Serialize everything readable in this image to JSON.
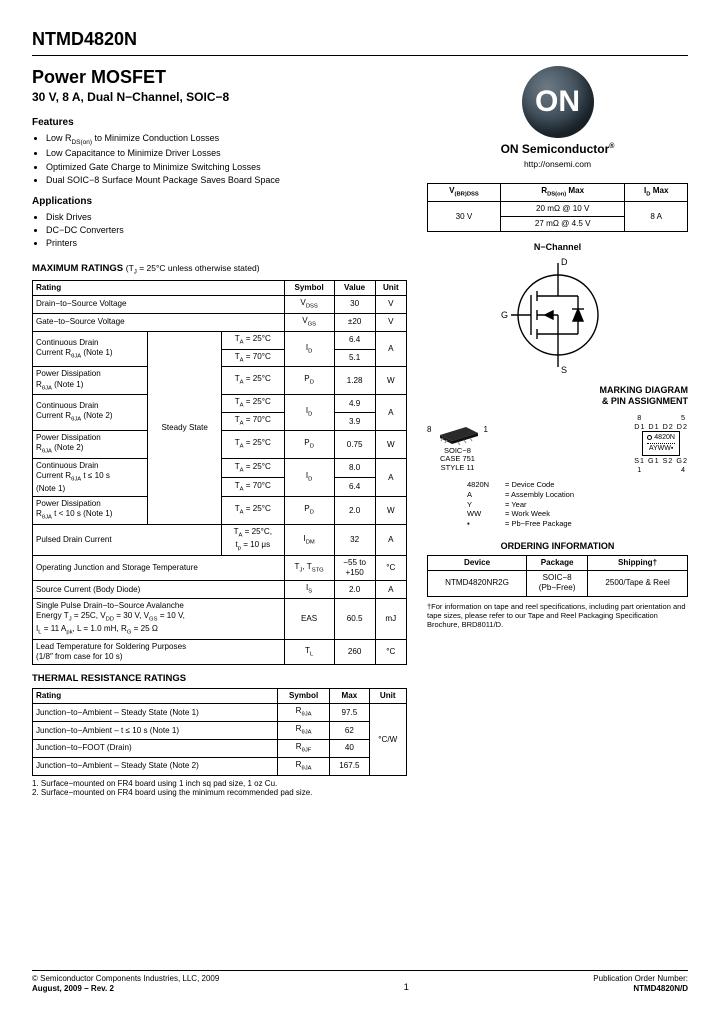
{
  "part_number": "NTMD4820N",
  "title": "Power MOSFET",
  "subtitle": "30 V, 8 A, Dual N−Channel, SOIC−8",
  "features_heading": "Features",
  "features": [
    "Low R<sub>DS(on)</sub> to Minimize Conduction Losses",
    "Low Capacitance to Minimize Driver Losses",
    "Optimized Gate Charge to Minimize Switching Losses",
    "Dual SOIC−8 Surface Mount Package Saves Board Space"
  ],
  "applications_heading": "Applications",
  "applications": [
    "Disk Drives",
    "DC−DC Converters",
    "Printers"
  ],
  "max_ratings": {
    "caption": "MAXIMUM RATINGS",
    "caption_note": "(T<sub>J</sub> = 25°C unless otherwise stated)",
    "cols": [
      "Rating",
      "Symbol",
      "Value",
      "Unit"
    ],
    "steady_label": "Steady State",
    "rows": [
      {
        "rating": "Drain−to−Source Voltage",
        "sym": "V<sub>DSS</sub>",
        "val": "30",
        "unit": "V",
        "span": 1
      },
      {
        "rating": "Gate−to−Source Voltage",
        "sym": "V<sub>GS</sub>",
        "val": "±20",
        "unit": "V",
        "span": 1
      }
    ],
    "group_rows": [
      {
        "r": "Continuous Drain<br>Current R<sub>θJA</sub> (Note 1)",
        "c1": "T<sub>A</sub> = 25°C",
        "c2": "T<sub>A</sub> = 70°C",
        "sym": "I<sub>D</sub>",
        "v1": "6.4",
        "v2": "5.1",
        "unit": "A"
      },
      {
        "r": "Power Dissipation<br>R<sub>θJA</sub> (Note 1)",
        "c1": "T<sub>A</sub> = 25°C",
        "c2": "",
        "sym": "P<sub>D</sub>",
        "v1": "1.28",
        "v2": "",
        "unit": "W"
      },
      {
        "r": "Continuous Drain<br>Current R<sub>θJA</sub> (Note 2)",
        "c1": "T<sub>A</sub> = 25°C",
        "c2": "T<sub>A</sub> = 70°C",
        "sym": "I<sub>D</sub>",
        "v1": "4.9",
        "v2": "3.9",
        "unit": "A"
      },
      {
        "r": "Power Dissipation<br>R<sub>θJA</sub> (Note 2)",
        "c1": "T<sub>A</sub> = 25°C",
        "c2": "",
        "sym": "P<sub>D</sub>",
        "v1": "0.75",
        "v2": "",
        "unit": "W"
      },
      {
        "r": "Continuous Drain<br>Current R<sub>θJA</sub> t ≤ 10 s<br>(Note 1)",
        "c1": "T<sub>A</sub> = 25°C",
        "c2": "T<sub>A</sub> = 70°C",
        "sym": "I<sub>D</sub>",
        "v1": "8.0",
        "v2": "6.4",
        "unit": "A"
      },
      {
        "r": "Power Dissipation<br>R<sub>θJA</sub> t < 10 s (Note 1)",
        "c1": "T<sub>A</sub> = 25°C",
        "c2": "",
        "sym": "P<sub>D</sub>",
        "v1": "2.0",
        "v2": "",
        "unit": "W"
      }
    ],
    "tail_rows": [
      {
        "rating": "Pulsed Drain Current",
        "cond": "T<sub>A</sub> = 25°C,<br>t<sub>p</sub> = 10 μs",
        "sym": "I<sub>DM</sub>",
        "val": "32",
        "unit": "A"
      },
      {
        "rating": "Operating Junction and Storage Temperature",
        "cond": "",
        "sym": "T<sub>J</sub>, T<sub>STG</sub>",
        "val": "−55 to<br>+150",
        "unit": "°C"
      },
      {
        "rating": "Source Current (Body Diode)",
        "cond": "",
        "sym": "I<sub>S</sub>",
        "val": "2.0",
        "unit": "A"
      },
      {
        "rating": "Single Pulse Drain−to−Source Avalanche<br>Energy T<sub>J</sub> = 25C, V<sub>DD</sub> = 30 V, V<sub>GS</sub> = 10 V,<br>I<sub>L</sub> = 11 A<sub>pk</sub>, L = 1.0 mH, R<sub>G</sub> = 25 Ω",
        "cond": "",
        "sym": "EAS",
        "val": "60.5",
        "unit": "mJ"
      },
      {
        "rating": "Lead Temperature for Soldering Purposes<br>(1/8″ from case for 10 s)",
        "cond": "",
        "sym": "T<sub>L</sub>",
        "val": "260",
        "unit": "°C"
      }
    ]
  },
  "thermal": {
    "caption": "THERMAL RESISTANCE RATINGS",
    "cols": [
      "Rating",
      "Symbol",
      "Max",
      "Unit"
    ],
    "rows": [
      {
        "r": "Junction−to−Ambient – Steady State (Note 1)",
        "s": "R<sub>θJA</sub>",
        "m": "97.5"
      },
      {
        "r": "Junction−to−Ambient – t ≤ 10 s (Note 1)",
        "s": "R<sub>θJA</sub>",
        "m": "62"
      },
      {
        "r": "Junction−to−FOOT (Drain)",
        "s": "R<sub>θJF</sub>",
        "m": "40"
      },
      {
        "r": "Junction−to−Ambient – Steady State (Note 2)",
        "s": "R<sub>θJA</sub>",
        "m": "167.5"
      }
    ],
    "unit": "°C/W"
  },
  "notes": [
    "1. Surface−mounted on FR4 board using 1 inch sq pad size, 1 oz Cu.",
    "2. Surface−mounted on FR4 board using the minimum recommended pad size."
  ],
  "logo": {
    "text": "ON",
    "company": "ON Semiconductor",
    "url": "http://onsemi.com"
  },
  "keyspec": {
    "cols": [
      "V<sub>(BR)DSS</sub>",
      "R<sub>DS(on)</sub> Max",
      "I<sub>D</sub> Max"
    ],
    "vbr": "30 V",
    "rds1": "20 mΩ @ 10 V",
    "rds2": "27 mΩ @ 4.5 V",
    "id": "8 A"
  },
  "mosfet": {
    "label": "N−Channel",
    "D": "D",
    "G": "G",
    "S": "S"
  },
  "marking": {
    "heading": "MARKING DIAGRAM<br>& PIN ASSIGNMENT",
    "pkg_label": "SOIC−8<br>CASE 751<br>STYLE 11",
    "pin_top": "D1 D1 D2 D2",
    "body_l1": "4820N",
    "body_l2": "AYWW▪",
    "pin_bot": "S1 G1 S2 G2",
    "pin8": "8",
    "pin1": "1",
    "legend": [
      {
        "k": "4820N",
        "v": "= Device Code"
      },
      {
        "k": "A",
        "v": "= Assembly Location"
      },
      {
        "k": "Y",
        "v": "= Year"
      },
      {
        "k": "WW",
        "v": "= Work Week"
      },
      {
        "k": "▪",
        "v": "= Pb−Free Package"
      }
    ]
  },
  "ordering": {
    "heading": "ORDERING INFORMATION",
    "cols": [
      "Device",
      "Package",
      "Shipping†"
    ],
    "row": [
      "NTMD4820NR2G",
      "SOIC−8<br>(Pb−Free)",
      "2500/Tape & Reel"
    ],
    "note": "†For information on tape and reel specifications, including part orientation and tape sizes, please refer to our Tape and Reel Packaging Specification Brochure, BRD8011/D."
  },
  "footer": {
    "left1": "© Semiconductor Components Industries, LLC, 2009",
    "left2": "August, 2009 − Rev. 2",
    "mid": "1",
    "right1": "Publication Order Number:",
    "right2": "NTMD4820N/D"
  },
  "colors": {
    "border": "#000000",
    "bg": "#ffffff",
    "logo_grad1": "#6b7a85",
    "logo_grad2": "#2a3944"
  }
}
